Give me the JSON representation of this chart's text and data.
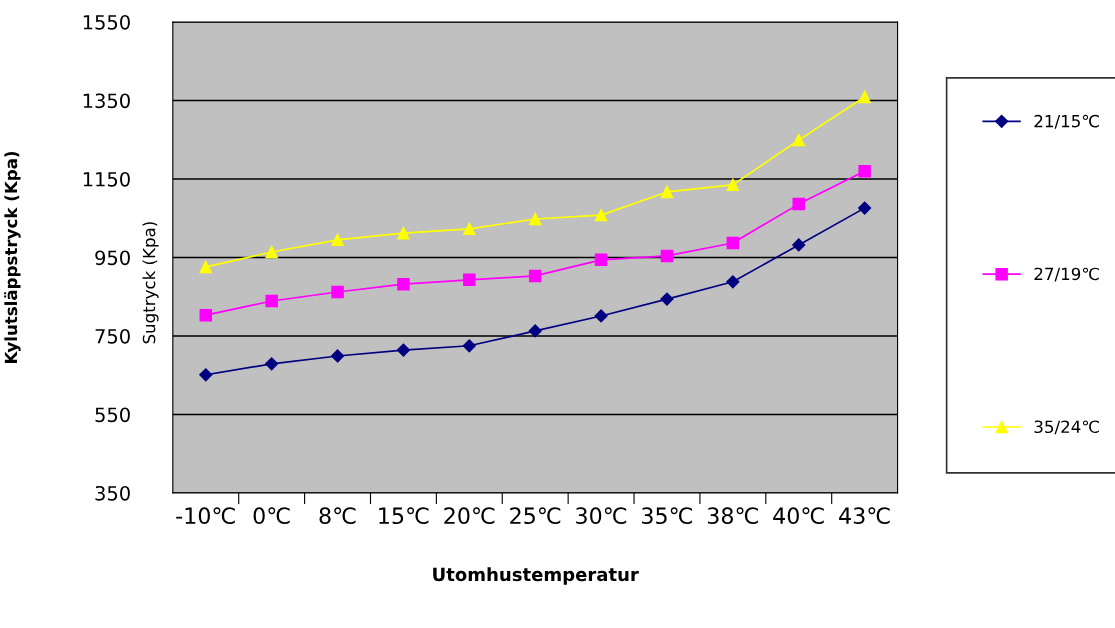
{
  "chart_data": {
    "type": "line",
    "ylabel": "Kylutsläppstryck (Kpa)",
    "xlabel": "Utomhustemperatur",
    "annotations": [
      "Sugtryck (Kpa)"
    ],
    "categories": [
      "-10℃",
      "0℃",
      "8℃",
      "15℃",
      "20℃",
      "25℃",
      "30℃",
      "35℃",
      "38℃",
      "40℃",
      "43℃"
    ],
    "series": [
      {
        "name": "21/15℃",
        "color": "#000080",
        "marker": "diamond",
        "values": [
          651,
          679,
          699,
          714,
          725,
          763,
          801,
          844,
          888,
          982,
          1076
        ]
      },
      {
        "name": "27/19℃",
        "color": "#ff00ff",
        "marker": "square",
        "values": [
          803,
          839,
          862,
          882,
          893,
          903,
          944,
          954,
          987,
          1086,
          1170
        ]
      },
      {
        "name": "35/24℃",
        "color": "#ffff00",
        "marker": "triangle",
        "values": [
          926,
          964,
          995,
          1012,
          1023,
          1048,
          1058,
          1117,
          1135,
          1249,
          1359
        ]
      }
    ],
    "ylim": [
      350,
      1550
    ],
    "yticks": [
      350,
      550,
      750,
      950,
      1150,
      1350,
      1550
    ],
    "grid": "y",
    "legend": "right",
    "line_style": "solid"
  }
}
